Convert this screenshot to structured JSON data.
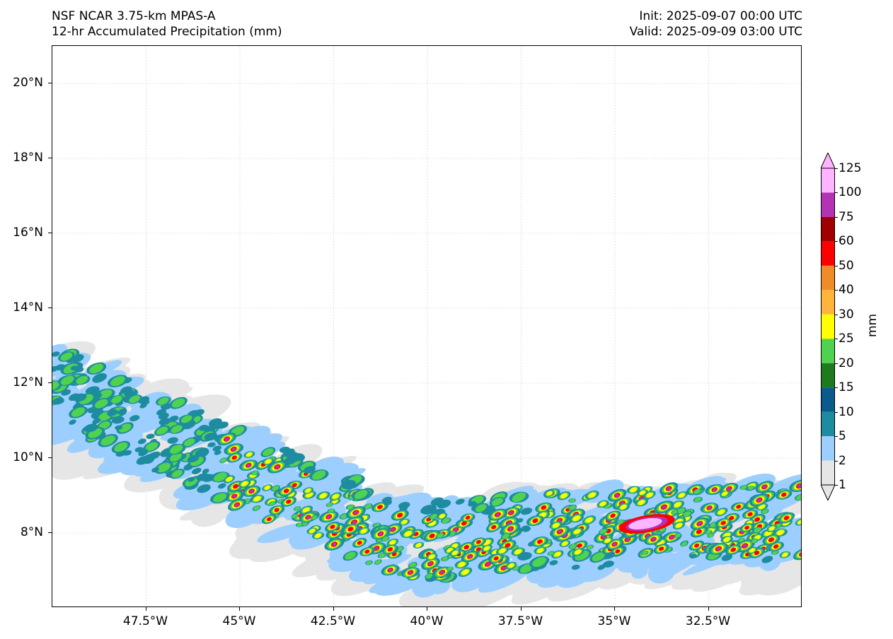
{
  "header": {
    "left_line1": "NSF NCAR 3.75-km MPAS-A",
    "left_line2": "12-hr Accumulated Precipitation (mm)",
    "right_line1": "Init: 2025-09-07 00:00 UTC",
    "right_line2": "Valid: 2025-09-09 03:00 UTC"
  },
  "map": {
    "lon_range": [
      -50,
      -30
    ],
    "lat_range": [
      6,
      21
    ],
    "gridlines": true,
    "lat_ticks": [
      {
        "value": 20,
        "label": "20°N"
      },
      {
        "value": 18,
        "label": "18°N"
      },
      {
        "value": 16,
        "label": "16°N"
      },
      {
        "value": 14,
        "label": "14°N"
      },
      {
        "value": 12,
        "label": "12°N"
      },
      {
        "value": 10,
        "label": "10°N"
      },
      {
        "value": 8,
        "label": "8°N"
      }
    ],
    "lon_ticks": [
      {
        "value": -47.5,
        "label": "47.5°W"
      },
      {
        "value": -45,
        "label": "45°W"
      },
      {
        "value": -42.5,
        "label": "42.5°W"
      },
      {
        "value": -40,
        "label": "40°W"
      },
      {
        "value": -37.5,
        "label": "37.5°W"
      },
      {
        "value": -35,
        "label": "35°W"
      },
      {
        "value": -32.5,
        "label": "32.5°W"
      }
    ]
  },
  "colorbar": {
    "units": "mm",
    "extend": "both",
    "levels": [
      "1",
      "2",
      "5",
      "10",
      "15",
      "20",
      "25",
      "30",
      "40",
      "50",
      "60",
      "75",
      "100",
      "125"
    ],
    "colors": [
      "#e6e6e6",
      "#9ccfff",
      "#1e8ca0",
      "#0a5a8c",
      "#1e7a1e",
      "#4fd24f",
      "#ffff00",
      "#ffb43c",
      "#f08c28",
      "#ff0000",
      "#a00000",
      "#b432b4",
      "#ffb4ff"
    ]
  }
}
